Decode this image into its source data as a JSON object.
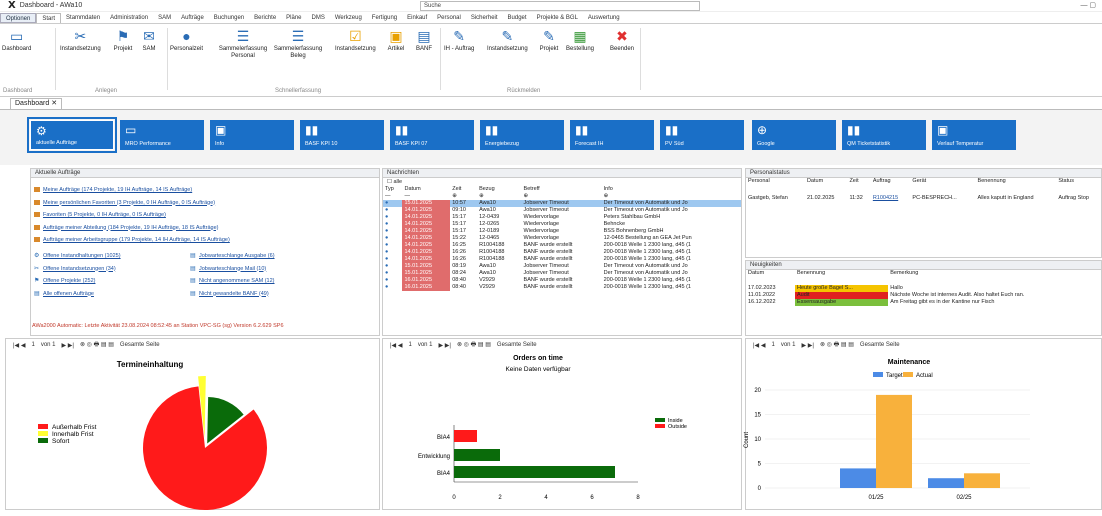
{
  "window": {
    "title": "Dashboard - AWa10",
    "search_placeholder": "Suche"
  },
  "menu": [
    "Optionen",
    "Start",
    "Stammdaten",
    "Administration",
    "SAM",
    "Aufträge",
    "Buchungen",
    "Berichte",
    "Pläne",
    "DMS",
    "Werkzeug",
    "Fertigung",
    "Einkauf",
    "Personal",
    "Sicherheit",
    "Budget",
    "Projekte & BGL",
    "Auswertung"
  ],
  "ribbon": {
    "buttons": [
      {
        "label": "Dashboard",
        "icon": "monitor-icon"
      },
      {
        "label": "Instandsetzung",
        "icon": "tools-icon"
      },
      {
        "label": "Projekt",
        "icon": "project-icon"
      },
      {
        "label": "SAM",
        "icon": "mail-icon"
      },
      {
        "label": "Personalzeit",
        "icon": "person-icon"
      },
      {
        "label": "Sammelerfassung Personal",
        "icon": "list-icon"
      },
      {
        "label": "Sammelerfassung Beleg",
        "icon": "list-icon"
      },
      {
        "label": "Instandsetzung",
        "icon": "checkbox-icon"
      },
      {
        "label": "Artikel",
        "icon": "article-icon"
      },
      {
        "label": "BANF",
        "icon": "banf-icon"
      },
      {
        "label": "IH - Auftrag",
        "icon": "edit-icon"
      },
      {
        "label": "Instandsetzung",
        "icon": "edit-icon"
      },
      {
        "label": "Projekt",
        "icon": "edit-icon"
      },
      {
        "label": "Bestellung",
        "icon": "order-icon"
      },
      {
        "label": "Beenden",
        "icon": "close-icon"
      }
    ],
    "groups": [
      "Dashboard",
      "Anlegen",
      "Schnellerfassung",
      "Rückmelden"
    ]
  },
  "doc_tab": "Dashboard",
  "tiles": [
    "aktuelle Aufträge",
    "MRO Performance",
    "Info",
    "BASF KPI 10",
    "BASF KPI 07",
    "Energiebezug",
    "Forecast IH",
    "PV Süd",
    "Google",
    "QM Ticketstatistik",
    "Verlauf Temperatur"
  ],
  "orders": {
    "title": "Aktuelle Aufträge",
    "links": [
      "Meine Aufträge (174 Projekte, 19 IH Aufträge, 14 IS Aufträge)",
      "Meine persönlichen Favoriten (3 Projekte, 0 IH Aufträge, 0 IS Aufträge)",
      "Favoriten (5 Projekte, 0 IH Aufträge, 0 IS Aufträge)",
      "Aufträge meiner Abteilung (184 Projekte, 19 IH Aufträge, 18 IS Aufträge)",
      "Aufträge meiner Arbeitsgruppe (179 Projekte, 14 IH Aufträge, 14 IS Aufträge)"
    ],
    "left_links": [
      "Offene Instandhaltungen (1025)",
      "Offene Instandsetzungen (34)",
      "Offene Projekte (252)",
      "Alle offenen Aufträge"
    ],
    "right_links": [
      "Jobwarteschlange Ausgabe (6)",
      "Jobwarteschlange Mail (10)",
      "Nicht angenommene SAM (12)",
      "Nicht gewandelte BANF (49)"
    ],
    "status": "AWa2000 Automatic: Letzte Aktivität 23.08.2024 08:52:45 an Station VPC-SG (sg) Version 6.2.629 SP6"
  },
  "news": {
    "title": "Nachrichten",
    "all": "alle",
    "headers": [
      "Typ",
      "Datum",
      "Zeit",
      "Bezug",
      "Betreff",
      "Info"
    ],
    "rows": [
      [
        "15.01.2025",
        "10:57",
        "Awa10",
        "Jobserver Timeout",
        "Der Timeout von Automatik und Jo"
      ],
      [
        "14.01.2025",
        "09:10",
        "Awa10",
        "Jobserver Timeout",
        "Der Timeout von Automatik und Jo"
      ],
      [
        "14.01.2025",
        "15:17",
        "12-0439",
        "Wiedervorlage",
        "Peters Stahlbau GmbH"
      ],
      [
        "14.01.2025",
        "15:17",
        "12-0265",
        "Wiedervorlage",
        "Behncke"
      ],
      [
        "14.01.2025",
        "15:17",
        "12-0189",
        "Wiedervorlage",
        "BSS Bohnenberg GmbH"
      ],
      [
        "14.01.2025",
        "15:22",
        "12-0465",
        "Wiedervorlage",
        "12-0465 Bestellung an GEA Jet Pun"
      ],
      [
        "14.01.2025",
        "16:25",
        "R1004188",
        "BANF wurde erstellt",
        "200-0018 Welle 1 2300 lang, d45 (1"
      ],
      [
        "14.01.2025",
        "16:26",
        "R1004188",
        "BANF wurde erstellt",
        "200-0018 Welle 1 2300 lang, d45 (1"
      ],
      [
        "14.01.2025",
        "16:26",
        "R1004188",
        "BANF wurde erstellt",
        "200-0018 Welle 1 2300 lang, d45 (1"
      ],
      [
        "15.01.2025",
        "08:19",
        "Awa10",
        "Jobserver Timeout",
        "Der Timeout von Automatik und Jo"
      ],
      [
        "15.01.2025",
        "08:24",
        "Awa10",
        "Jobserver Timeout",
        "Der Timeout von Automatik und Jo"
      ],
      [
        "16.01.2025",
        "08:40",
        "V2929",
        "BANF wurde erstellt",
        "200-0018 Welle 1 2300 lang, d45 (1"
      ],
      [
        "16.01.2025",
        "08:40",
        "V2929",
        "BANF wurde erstellt",
        "200-0018 Welle 1 2300 lang, d45 (1"
      ]
    ]
  },
  "staff": {
    "title": "Personalstatus",
    "headers": [
      "Personal",
      "Datum",
      "Zeit",
      "Auftrag",
      "Gerät",
      "Benennung",
      "Status"
    ],
    "row": [
      "Gastgeb, Stefan",
      "21.02.2025",
      "11:32",
      "R1004215",
      "PC-BESPRECH...",
      "Alles kaputt in England",
      "Auftrag Stop"
    ]
  },
  "newsflash": {
    "title": "Neuigkeiten",
    "headers": [
      "Datum",
      "Benennung",
      "Bemerkung"
    ],
    "rows": [
      {
        "date": "17.02.2023",
        "name": "Heute große Bagel S...",
        "note": "Hallo",
        "color": "#f5c400"
      },
      {
        "date": "11.01.2022",
        "name": "Audit",
        "note": "Nächste Woche ist internes Audit. Also haltet Euch ran.",
        "color": "#e02020"
      },
      {
        "date": "16.12.2022",
        "name": "Essensausgabe",
        "note": "Am Freitag gibt es in der Kantine nur Fisch",
        "color": "#7bbf3c"
      }
    ]
  },
  "report_toolbar": {
    "page": "1",
    "of": "von 1",
    "zoom": "Gesamte Seite"
  },
  "chart_data": [
    {
      "type": "pie",
      "title": "Termineinhaltung",
      "legend": [
        "Außerhalb Frist",
        "Innerhalb Frist",
        "Sofort"
      ],
      "colors": [
        "#ff1a1a",
        "#ffff33",
        "#0a6b0a"
      ],
      "values": [
        84,
        2,
        14
      ]
    },
    {
      "type": "bar",
      "orientation": "horizontal",
      "title": "Orders on time",
      "subtitle": "Keine Daten verfügbar",
      "categories": [
        "BIA4",
        "Entwicklung",
        "BIA4"
      ],
      "series": [
        {
          "name": "Inside",
          "color": "#0a6b0a",
          "values": [
            0,
            2,
            7
          ]
        },
        {
          "name": "Outside",
          "color": "#ff1a1a",
          "values": [
            1,
            0,
            0
          ]
        }
      ],
      "xlim": [
        0,
        8
      ],
      "xticks": [
        0,
        2,
        4,
        6,
        8
      ]
    },
    {
      "type": "bar",
      "title": "Maintenance",
      "ylabel": "Count",
      "categories": [
        "01/25",
        "02/25"
      ],
      "series": [
        {
          "name": "Target",
          "color": "#4c8be6",
          "values": [
            4,
            2
          ]
        },
        {
          "name": "Actual",
          "color": "#f8b13c",
          "values": [
            19,
            3
          ]
        }
      ],
      "ylim": [
        0,
        20
      ],
      "yticks": [
        0,
        5,
        10,
        15,
        20
      ]
    }
  ],
  "colors": {
    "accent": "#1a6fc7"
  }
}
